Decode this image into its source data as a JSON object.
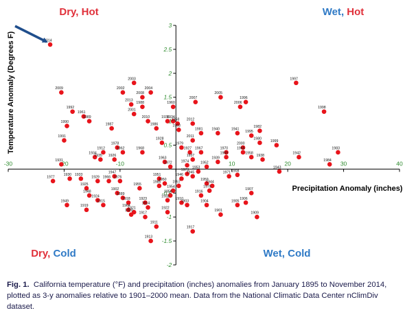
{
  "chart_data": {
    "type": "scatter",
    "xlabel": "Precipitation Anomaly (inches)",
    "ylabel": "Temperature Anomaly (Degrees F)",
    "xlim": [
      -30,
      40
    ],
    "ylim": [
      -2,
      3
    ],
    "x_ticks": [
      "-30",
      "-20",
      "-10",
      "0",
      "10",
      "20",
      "30",
      "40"
    ],
    "y_ticks": [
      "3",
      "2.5",
      "2",
      "1.5",
      "1",
      "0.5",
      "-0.5",
      "-1",
      "-1.5",
      "-2"
    ],
    "quadrants": {
      "top_left": {
        "word1": "Dry",
        "sep": ", ",
        "word2": "Hot",
        "color1": "#e0303a",
        "color2": "#e0303a"
      },
      "top_right": {
        "word1": "Wet",
        "sep": ", ",
        "word2": "Hot",
        "color1": "#2f7ac6",
        "color2": "#e0303a"
      },
      "bottom_left": {
        "word1": "Dry",
        "sep": ", ",
        "word2": "Cold",
        "color1": "#e0303a",
        "color2": "#2f7ac6"
      },
      "bottom_right": {
        "word1": "Wet",
        "sep": ", ",
        "word2": "Cold",
        "color1": "#2f7ac6",
        "color2": "#2f7ac6"
      }
    },
    "highlight": {
      "label": "2014",
      "x": -22.5,
      "y": 2.6
    },
    "point_color": "#e8141b",
    "points": [
      {
        "label": "2014",
        "x": -22.5,
        "y": 2.6
      },
      {
        "label": "2009",
        "x": -20.5,
        "y": 1.6
      },
      {
        "label": "2002",
        "x": -9.5,
        "y": 1.6
      },
      {
        "label": "2003",
        "x": -7.5,
        "y": 1.8
      },
      {
        "label": "2004",
        "x": -4.5,
        "y": 1.6
      },
      {
        "label": "2008",
        "x": -6,
        "y": 1.5
      },
      {
        "label": "2013",
        "x": -8,
        "y": 1.35
      },
      {
        "label": "1988",
        "x": -6,
        "y": 1.3
      },
      {
        "label": "2001",
        "x": -7.5,
        "y": 1.15
      },
      {
        "label": "1992",
        "x": -18.5,
        "y": 1.2
      },
      {
        "label": "1961",
        "x": -16.5,
        "y": 1.1
      },
      {
        "label": "1989",
        "x": -15.5,
        "y": 1.0
      },
      {
        "label": "1990",
        "x": -19.5,
        "y": 0.9
      },
      {
        "label": "1987",
        "x": -11.5,
        "y": 0.85
      },
      {
        "label": "1991",
        "x": -20,
        "y": 0.6
      },
      {
        "label": "2010",
        "x": -5,
        "y": 1.0
      },
      {
        "label": "1936",
        "x": -1.5,
        "y": 1.0
      },
      {
        "label": "1986",
        "x": -3.5,
        "y": 0.85
      },
      {
        "label": "1960",
        "x": -0.5,
        "y": 1.3
      },
      {
        "label": "1934",
        "x": -0.5,
        "y": 1.0
      },
      {
        "label": "1958",
        "x": 0.3,
        "y": 0.95
      },
      {
        "label": "1993",
        "x": 0.5,
        "y": 0.82
      },
      {
        "label": "2007",
        "x": 3.5,
        "y": 1.4
      },
      {
        "label": "2005",
        "x": 8,
        "y": 1.5
      },
      {
        "label": "1996",
        "x": 12.5,
        "y": 1.4
      },
      {
        "label": "2006",
        "x": 11.5,
        "y": 1.3
      },
      {
        "label": "1997",
        "x": 21.5,
        "y": 1.8
      },
      {
        "label": "1998",
        "x": 26.5,
        "y": 1.2
      },
      {
        "label": "2012",
        "x": 3,
        "y": 0.95
      },
      {
        "label": "1981",
        "x": 4.5,
        "y": 0.75
      },
      {
        "label": "1940",
        "x": 7.5,
        "y": 0.75
      },
      {
        "label": "2011",
        "x": 3,
        "y": 0.6
      },
      {
        "label": "1941",
        "x": 11,
        "y": 0.75
      },
      {
        "label": "1982",
        "x": 15,
        "y": 0.8
      },
      {
        "label": "1995",
        "x": 13.5,
        "y": 0.7
      },
      {
        "label": "1999",
        "x": 18,
        "y": 0.5
      },
      {
        "label": "2000",
        "x": 12,
        "y": 0.45
      },
      {
        "label": "1980",
        "x": 15,
        "y": 0.55
      },
      {
        "label": "1965",
        "x": 12,
        "y": 0.35
      },
      {
        "label": "1958b",
        "display": "1958",
        "x": 13.5,
        "y": 0.25
      },
      {
        "label": "1938",
        "x": 15.5,
        "y": 0.2
      },
      {
        "label": "1942",
        "x": 22,
        "y": 0.25
      },
      {
        "label": "1983",
        "x": 29,
        "y": 0.35
      },
      {
        "label": "1984",
        "x": 27.5,
        "y": 0.1
      },
      {
        "label": "1943",
        "x": 18.5,
        "y": -0.05
      },
      {
        "label": "1928",
        "x": -2.5,
        "y": 0.55
      },
      {
        "label": "1978",
        "x": -10.5,
        "y": 0.45
      },
      {
        "label": "1912",
        "x": -13,
        "y": 0.35
      },
      {
        "label": "1962",
        "x": -9.5,
        "y": 0.35
      },
      {
        "label": "1968",
        "x": -6,
        "y": 0.35
      },
      {
        "label": "1934b",
        "display": "1934",
        "x": -14.5,
        "y": 0.25
      },
      {
        "label": "1935",
        "x": -13.5,
        "y": 0.2
      },
      {
        "label": "1926",
        "x": -11,
        "y": 0.2
      },
      {
        "label": "1979",
        "x": 1,
        "y": 0.45
      },
      {
        "label": "1927",
        "x": 2.5,
        "y": 0.35
      },
      {
        "label": "1967",
        "x": 4.5,
        "y": 0.35
      },
      {
        "label": "1937",
        "x": 3,
        "y": 0.2
      },
      {
        "label": "1970",
        "x": 9,
        "y": 0.35
      },
      {
        "label": "1969",
        "x": 9,
        "y": 0.25
      },
      {
        "label": "1939",
        "x": 7.5,
        "y": 0.15
      },
      {
        "label": "1952",
        "x": 5.5,
        "y": 0.05
      },
      {
        "label": "1974",
        "x": 2,
        "y": 0.08
      },
      {
        "label": "1963",
        "x": -2,
        "y": 0.15
      },
      {
        "label": "1972",
        "x": -1,
        "y": 0.05
      },
      {
        "label": "1931",
        "x": -20.5,
        "y": 0.1
      },
      {
        "label": "1971",
        "x": 9.5,
        "y": -0.15
      },
      {
        "label": "1908",
        "x": 11,
        "y": -0.12
      },
      {
        "label": "1977",
        "x": -22,
        "y": -0.25
      },
      {
        "label": "1930",
        "x": -19,
        "y": -0.2
      },
      {
        "label": "1933",
        "x": -17,
        "y": -0.2
      },
      {
        "label": "1929",
        "x": -14,
        "y": -0.25
      },
      {
        "label": "1947",
        "x": -11,
        "y": -0.15
      },
      {
        "label": "1966",
        "x": -12,
        "y": -0.25
      },
      {
        "label": "1976",
        "x": -10,
        "y": -0.25
      },
      {
        "label": "1949",
        "x": -19.5,
        "y": -0.75
      },
      {
        "label": "1919",
        "x": -16,
        "y": -0.85
      },
      {
        "label": "1925",
        "x": -16,
        "y": -0.4
      },
      {
        "label": "1948",
        "x": -15.5,
        "y": -0.55
      },
      {
        "label": "1924",
        "x": -14,
        "y": -0.65
      },
      {
        "label": "1915",
        "x": -13,
        "y": -0.75
      },
      {
        "label": "1902",
        "x": -10.5,
        "y": -0.5
      },
      {
        "label": "1889",
        "x": -9.5,
        "y": -0.6
      },
      {
        "label": "1918",
        "x": -8.5,
        "y": -0.7
      },
      {
        "label": "1955",
        "x": -6.5,
        "y": -0.4
      },
      {
        "label": "1923",
        "x": -5.5,
        "y": -0.7
      },
      {
        "label": "1914",
        "x": -5,
        "y": -0.8
      },
      {
        "label": "1964",
        "x": -8.5,
        "y": -0.85
      },
      {
        "label": "1921",
        "x": -7.5,
        "y": -0.9
      },
      {
        "label": "1920",
        "x": -8,
        "y": -0.95
      },
      {
        "label": "1917",
        "x": -5.5,
        "y": -1.0
      },
      {
        "label": "1951",
        "x": -3,
        "y": -0.2
      },
      {
        "label": "1950",
        "x": -2,
        "y": -0.3
      },
      {
        "label": "1985",
        "x": -3,
        "y": -0.35
      },
      {
        "label": "1922",
        "x": -1.5,
        "y": -0.9
      },
      {
        "label": "1956",
        "x": -1,
        "y": -0.55
      },
      {
        "label": "1932",
        "x": -1.5,
        "y": -0.65
      },
      {
        "label": "1910",
        "x": 1,
        "y": -0.7
      },
      {
        "label": "1903",
        "x": 2,
        "y": -0.75
      },
      {
        "label": "1913",
        "x": -4.5,
        "y": -1.5
      },
      {
        "label": "1911",
        "x": -3.5,
        "y": -1.2
      },
      {
        "label": "1917b",
        "display": "1917",
        "x": 3,
        "y": -1.3
      },
      {
        "label": "1945",
        "x": 3,
        "y": -0.15
      },
      {
        "label": "1959",
        "x": 5.5,
        "y": -0.3
      },
      {
        "label": "1944",
        "x": 6.5,
        "y": -0.35
      },
      {
        "label": "1975",
        "x": 6,
        "y": -0.45
      },
      {
        "label": "1916",
        "x": 4.5,
        "y": -0.55
      },
      {
        "label": "1904",
        "x": 5.5,
        "y": -0.75
      },
      {
        "label": "1901",
        "x": 8,
        "y": -0.95
      },
      {
        "label": "1907",
        "x": 13.5,
        "y": -0.5
      },
      {
        "label": "1906",
        "x": 12.5,
        "y": -0.7
      },
      {
        "label": "1905",
        "x": 11,
        "y": -0.75
      },
      {
        "label": "1909",
        "x": 14.5,
        "y": -1.0
      },
      {
        "label": "1957",
        "x": 0.5,
        "y": -0.35
      },
      {
        "label": "1953",
        "x": 4,
        "y": -0.05
      },
      {
        "label": "1973",
        "x": 2,
        "y": -0.1
      },
      {
        "label": "1946",
        "x": 1,
        "y": -0.2
      },
      {
        "label": "1954",
        "x": -0.5,
        "y": -0.45
      }
    ]
  },
  "caption": {
    "fig_label": "Fig. 1.",
    "text": "California temperature (°F) and precipitation (inches) anomalies from January 1895 to November 2014, plotted as 3-y anomalies relative to 1901–2000 mean. Data from the National Climatic Data Center nClimDiv dataset."
  }
}
